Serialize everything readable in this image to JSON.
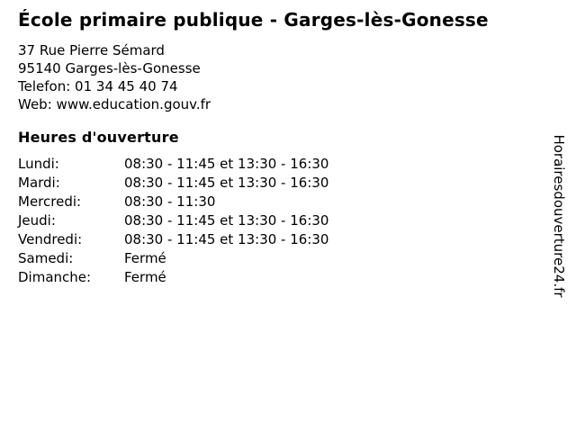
{
  "header": {
    "title": "École primaire publique - Garges-lès-Gonesse",
    "address_line1": "37 Rue Pierre Sémard",
    "address_line2": "95140 Garges-lès-Gonesse",
    "phone": {
      "label": "Telefon:",
      "value": "01 34 45 40 74"
    },
    "web": {
      "label": "Web:",
      "value": "www.education.gouv.fr"
    }
  },
  "hours": {
    "heading": "Heures d'ouverture",
    "rows": [
      {
        "day": "Lundi:",
        "time": "08:30 - 11:45 et 13:30 - 16:30"
      },
      {
        "day": "Mardi:",
        "time": "08:30 - 11:45 et 13:30 - 16:30"
      },
      {
        "day": "Mercredi:",
        "time": "08:30 - 11:30"
      },
      {
        "day": "Jeudi:",
        "time": "08:30 - 11:45 et 13:30 - 16:30"
      },
      {
        "day": "Vendredi:",
        "time": "08:30 - 11:45 et 13:30 - 16:30"
      },
      {
        "day": "Samedi:",
        "time": "Fermé"
      },
      {
        "day": "Dimanche:",
        "time": "Fermé"
      }
    ]
  },
  "watermark": "Horairesdouverture24.fr",
  "colors": {
    "text": "#000000",
    "background": "#ffffff"
  }
}
